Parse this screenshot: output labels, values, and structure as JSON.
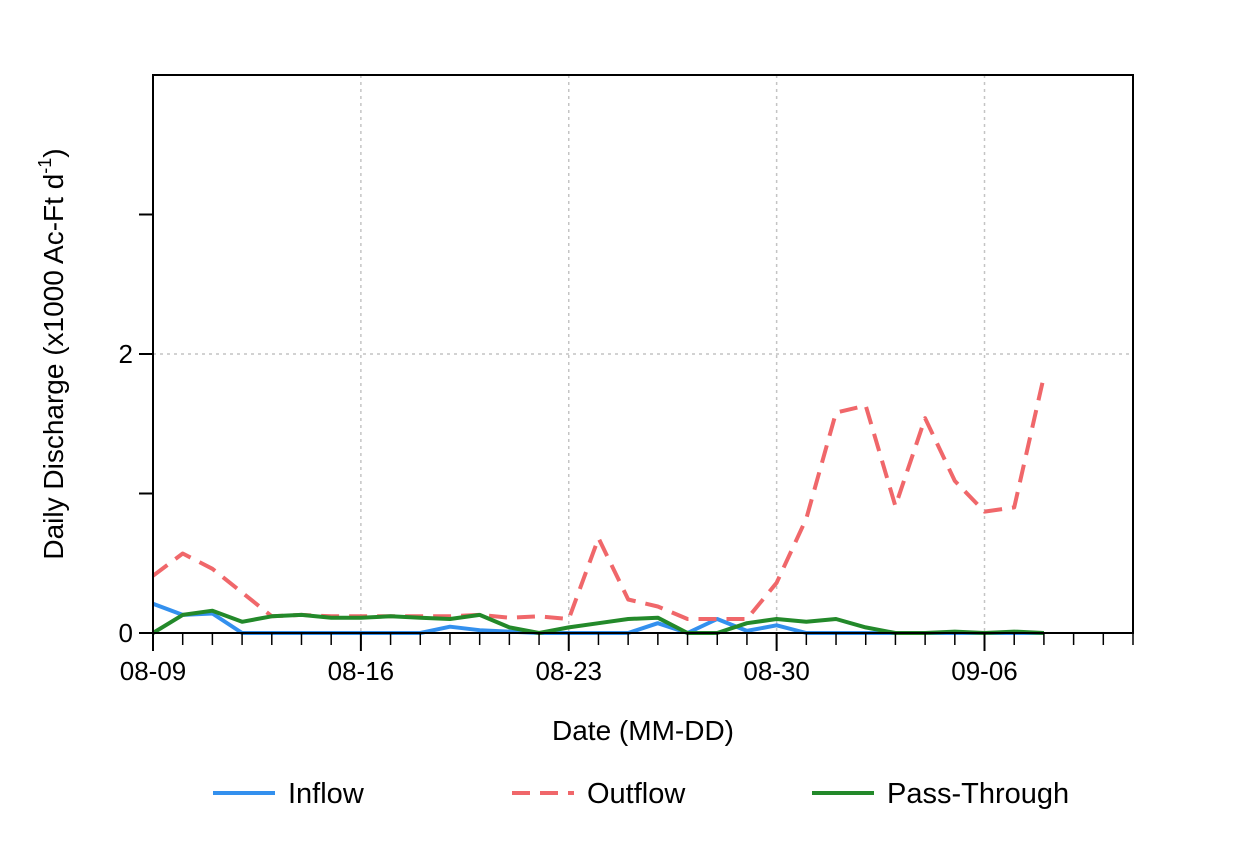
{
  "chart_data": {
    "type": "line",
    "xlabel": "Date (MM-DD)",
    "ylabel_main": "Daily Discharge (x1000 Ac-Ft d",
    "ylabel_sup": "-1",
    "ylabel_close": ")",
    "x": [
      "08-09",
      "08-10",
      "08-11",
      "08-12",
      "08-13",
      "08-14",
      "08-15",
      "08-16",
      "08-17",
      "08-18",
      "08-19",
      "08-20",
      "08-21",
      "08-22",
      "08-23",
      "08-24",
      "08-25",
      "08-26",
      "08-27",
      "08-28",
      "08-29",
      "08-30",
      "08-31",
      "09-01",
      "09-02",
      "09-03",
      "09-04",
      "09-05",
      "09-06",
      "09-07",
      "09-08"
    ],
    "x_tick_labels": [
      "08-09",
      "08-16",
      "08-23",
      "08-30",
      "09-06"
    ],
    "xlim": [
      "08-09",
      "09-11"
    ],
    "ylim": [
      0,
      4
    ],
    "y_tick_values": [
      0,
      1,
      2,
      3
    ],
    "y_tick_labels": [
      "0",
      "",
      "2",
      ""
    ],
    "grid": true,
    "legend_position": "bottom",
    "series": [
      {
        "name": "Inflow",
        "color": "#3390ee",
        "dash": "solid",
        "values": [
          0.21,
          0.13,
          0.14,
          0.0,
          0.0,
          0.0,
          0.0,
          0.0,
          0.0,
          0.0,
          0.045,
          0.02,
          0.01,
          0.0,
          0.0,
          0.0,
          0.0,
          0.07,
          0.0,
          0.1,
          0.015,
          0.055,
          0.0,
          0.0,
          0.0,
          0.0,
          0.0,
          0.0,
          0.0,
          0.0,
          0.0
        ]
      },
      {
        "name": "Outflow",
        "color": "#f0676a",
        "dash": "dashed",
        "values": [
          0.41,
          0.57,
          0.46,
          0.29,
          0.12,
          0.13,
          0.12,
          0.12,
          0.12,
          0.12,
          0.12,
          0.13,
          0.11,
          0.12,
          0.1,
          0.68,
          0.24,
          0.19,
          0.1,
          0.1,
          0.1,
          0.36,
          0.82,
          1.58,
          1.63,
          0.91,
          1.54,
          1.09,
          0.87,
          0.9,
          1.84
        ]
      },
      {
        "name": "Pass-Through",
        "color": "#23892a",
        "dash": "solid",
        "values": [
          0.0,
          0.13,
          0.16,
          0.08,
          0.12,
          0.13,
          0.11,
          0.11,
          0.12,
          0.11,
          0.1,
          0.13,
          0.04,
          0.0,
          0.04,
          0.07,
          0.1,
          0.11,
          0.0,
          0.0,
          0.07,
          0.1,
          0.08,
          0.1,
          0.04,
          0.0,
          0.0,
          0.01,
          0.0,
          0.01,
          0.0
        ]
      }
    ]
  }
}
